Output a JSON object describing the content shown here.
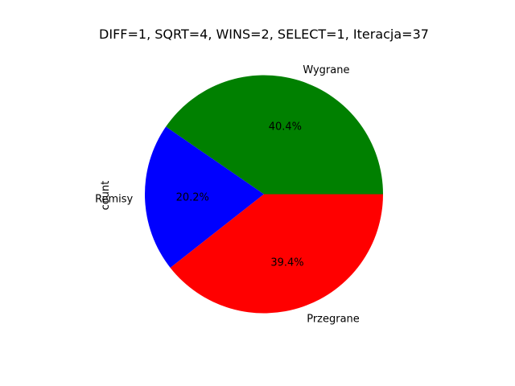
{
  "chart_data": {
    "type": "pie",
    "title": "DIFF=1, SQRT=4, WINS=2, SELECT=1, Iteracja=37",
    "ylabel": "count",
    "legend": "none",
    "slices": [
      {
        "label": "Wygrane",
        "percent_label": "40.4%",
        "value": 40.4,
        "color": "#008000"
      },
      {
        "label": "Remisy",
        "percent_label": "20.2%",
        "value": 20.2,
        "color": "#0000ff"
      },
      {
        "label": "Przegrane",
        "percent_label": "39.4%",
        "value": 39.4,
        "color": "#ff0000"
      }
    ]
  }
}
